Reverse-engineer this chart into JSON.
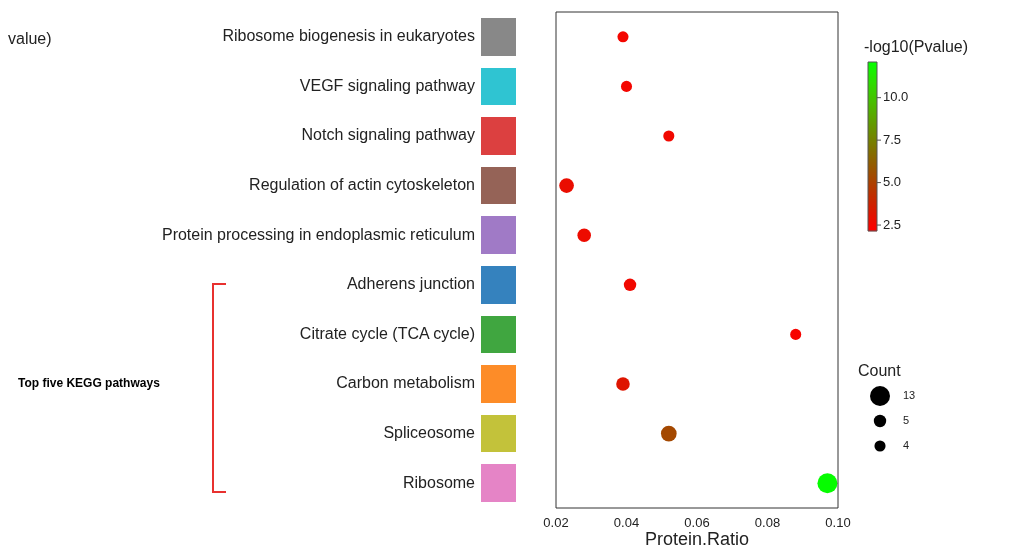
{
  "chart_data": {
    "type": "bubble",
    "orientation": "horizontal",
    "categories": [
      "Ribosome biogenesis in eukaryotes",
      "VEGF signaling pathway",
      "Notch signaling pathway",
      "Regulation of actin cytoskeleton",
      "Protein processing in endoplasmic reticulum",
      "Adherens junction",
      "Citrate cycle (TCA cycle)",
      "Carbon metabolism",
      "Spliceosome",
      "Ribosome"
    ],
    "values": [
      0.039,
      0.04,
      0.052,
      0.023,
      0.028,
      0.041,
      0.088,
      0.039,
      0.052,
      0.097
    ],
    "sizes": [
      4,
      4,
      4,
      7,
      6,
      5,
      4,
      6,
      8,
      13
    ],
    "size_legend": [
      13,
      5,
      4
    ],
    "cvalues": [
      2.5,
      2.5,
      2.6,
      2.8,
      2.7,
      2.6,
      2.4,
      3.2,
      5.3,
      12.0
    ],
    "clim": [
      2.15,
      12.1
    ],
    "cticks": [
      2.5,
      {
        "value": 5,
        "label": "5.0"
      },
      {
        "value": 7.5,
        "label": "7.5"
      },
      {
        "value": 10,
        "label": "10.0"
      }
    ],
    "clabel": "-log10(Pvalue)",
    "legend_title": "Count",
    "xlabel": "Protein.Ratio",
    "xlim": [
      0.02,
      0.1
    ],
    "xticks": [
      {
        "value": 0.02,
        "label": "0.02"
      },
      {
        "value": 0.04,
        "label": "0.04"
      },
      {
        "value": 0.06,
        "label": "0.06"
      },
      {
        "value": 0.08,
        "label": "0.08"
      },
      {
        "value": 0.1,
        "label": "0.10"
      }
    ],
    "grid": false,
    "annotations": [
      "Top five KEGG pathways",
      "value)"
    ]
  }
}
